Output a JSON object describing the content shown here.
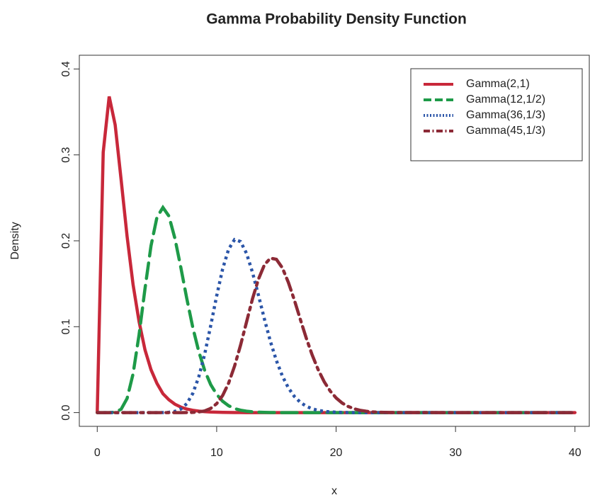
{
  "chart_data": {
    "type": "line",
    "title": "Gamma Probability Density Function",
    "x_label": "x",
    "y_label": "Density",
    "xlim": [
      -1.5,
      41.2
    ],
    "ylim": [
      -0.016,
      0.416
    ],
    "xticks": [
      0,
      10,
      20,
      30,
      40
    ],
    "yticks": [
      {
        "value": 0,
        "label": "0.0"
      },
      0.1,
      0.2,
      0.3,
      0.4
    ],
    "grid": false,
    "legend": "top-right",
    "x": [
      0,
      0.5,
      1,
      1.5,
      2,
      2.5,
      3,
      3.5,
      4,
      4.5,
      5,
      5.5,
      6,
      6.5,
      7,
      7.5,
      8,
      8.5,
      9,
      9.5,
      10,
      10.5,
      11,
      11.5,
      12,
      12.5,
      13,
      13.5,
      14,
      14.5,
      15,
      15.5,
      16,
      16.5,
      17,
      17.5,
      18,
      18.5,
      19,
      19.5,
      20,
      20.5,
      21,
      21.5,
      22,
      22.5,
      23,
      23.5,
      24,
      24.5,
      25,
      30,
      35,
      40
    ],
    "series": [
      {
        "name": "Gamma(2,1)",
        "color": "#c8283a",
        "dash": "solid",
        "values": [
          0,
          0.303,
          0.368,
          0.335,
          0.271,
          0.205,
          0.149,
          0.106,
          0.073,
          0.05,
          0.034,
          0.022,
          0.015,
          0.0098,
          0.0064,
          0.0041,
          0.0027,
          0.0017,
          0.0011,
          0.0007,
          0.0005,
          0.0003,
          0.0002,
          0.0001,
          0.0001,
          0,
          0,
          0,
          0,
          0,
          0,
          0,
          0,
          0,
          0,
          0,
          0,
          0,
          0,
          0,
          0,
          0,
          0,
          0,
          0,
          0,
          0,
          0,
          0,
          0,
          0,
          0,
          0,
          0
        ]
      },
      {
        "name": "Gamma(12,1/2)",
        "color": "#1e9a48",
        "dash": "dashed",
        "values": [
          0,
          0,
          1e-05,
          0.0004,
          0.0039,
          0.0165,
          0.0451,
          0.0904,
          0.1444,
          0.194,
          0.2274,
          0.2388,
          0.2288,
          0.203,
          0.1688,
          0.1326,
          0.0992,
          0.0712,
          0.049,
          0.0326,
          0.0212,
          0.0132,
          0.008,
          0.0047,
          0.0028,
          0.0016,
          0.0009,
          0.0005,
          0.0003,
          0.0001,
          0.0001,
          0,
          0,
          0,
          0,
          0,
          0,
          0,
          0,
          0,
          0,
          0,
          0,
          0,
          0,
          0,
          0,
          0,
          0,
          0,
          0,
          0,
          0,
          0
        ]
      },
      {
        "name": "Gamma(36,1/3)",
        "color": "#2b55a8",
        "dash": "dotted",
        "values": [
          0,
          0,
          0,
          0,
          0,
          0,
          0,
          0,
          0,
          0,
          1e-05,
          8e-05,
          0.00038,
          0.0014,
          0.0042,
          0.0104,
          0.0223,
          0.0415,
          0.0683,
          0.1012,
          0.1359,
          0.1672,
          0.1902,
          0.2014,
          0.1991,
          0.1853,
          0.1632,
          0.1366,
          0.1087,
          0.0828,
          0.0606,
          0.0426,
          0.0289,
          0.0189,
          0.012,
          0.0074,
          0.0044,
          0.0026,
          0.0015,
          0.0008,
          0.0005,
          0.0002,
          0.0001,
          0,
          0,
          0,
          0,
          0,
          0,
          0,
          0,
          0,
          0,
          0
        ]
      },
      {
        "name": "Gamma(45,1/3)",
        "color": "#8c2a36",
        "dash": "dotdash",
        "values": [
          0,
          0,
          0,
          0,
          0,
          0,
          0,
          0,
          0,
          0,
          0,
          0,
          0,
          0,
          1e-05,
          6e-05,
          0.00023,
          0.00074,
          0.002,
          0.0049,
          0.0104,
          0.0199,
          0.0343,
          0.0542,
          0.0785,
          0.1054,
          0.1325,
          0.1554,
          0.1721,
          0.1798,
          0.1784,
          0.1685,
          0.1517,
          0.1312,
          0.1087,
          0.0868,
          0.067,
          0.0499,
          0.036,
          0.0252,
          0.0171,
          0.0112,
          0.0072,
          0.0045,
          0.0027,
          0.0016,
          0.0009,
          0.0005,
          0.0003,
          0.0002,
          0.0001,
          0,
          0,
          0
        ]
      }
    ]
  }
}
